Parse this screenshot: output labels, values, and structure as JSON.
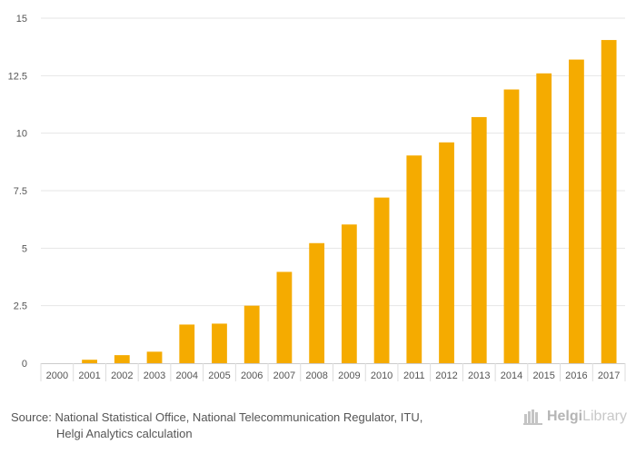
{
  "chart_data": {
    "type": "bar",
    "title": "",
    "xlabel": "",
    "ylabel": "",
    "categories": [
      "2000",
      "2001",
      "2002",
      "2003",
      "2004",
      "2005",
      "2006",
      "2007",
      "2008",
      "2009",
      "2010",
      "2011",
      "2012",
      "2013",
      "2014",
      "2015",
      "2016",
      "2017"
    ],
    "values": [
      0.0,
      0.15,
      0.35,
      0.5,
      1.68,
      1.72,
      2.5,
      3.97,
      5.22,
      6.03,
      7.2,
      9.03,
      9.6,
      10.7,
      11.9,
      12.6,
      13.2,
      14.05
    ],
    "ylim": [
      0,
      15
    ],
    "yticks": [
      0,
      2.5,
      5,
      7.5,
      10,
      12.5,
      15
    ],
    "ytick_labels": [
      "0",
      "2.5",
      "5",
      "7.5",
      "10",
      "12.5",
      "15"
    ],
    "bar_color": "#f5ab00",
    "grid": true
  },
  "footer": {
    "source_label": "Source:",
    "source_line1": "National Statistical Office, National Telecommunication Regulator, ITU,",
    "source_line2": "Helgi Analytics calculation",
    "brand_part1": "Helgi",
    "brand_part2": "Library",
    "brand_icon": "helgi-library-logo-icon"
  }
}
